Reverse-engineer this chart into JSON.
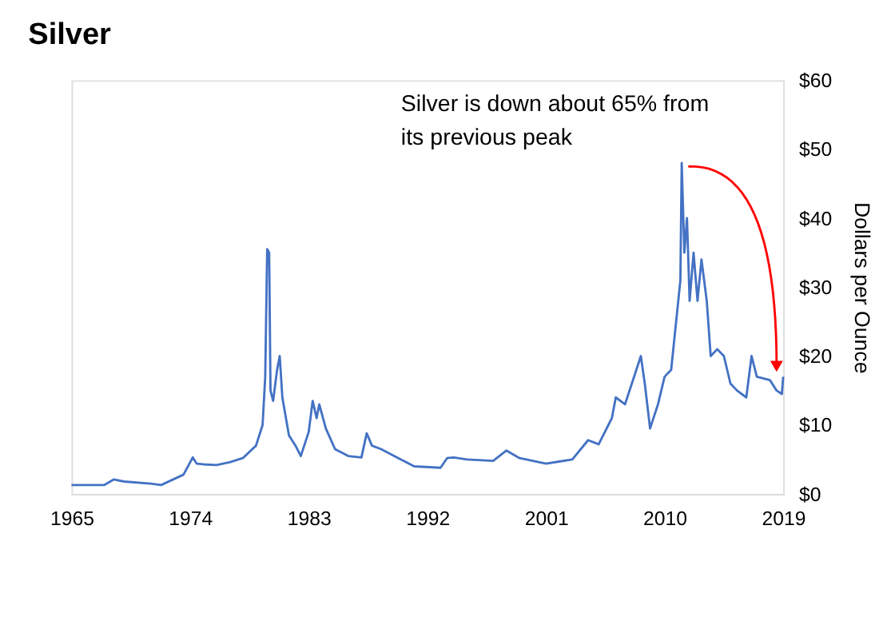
{
  "chart_data": {
    "type": "line",
    "title": "Silver",
    "ylabel": "Dollars per Ounce",
    "x": [
      1965,
      1967.5,
      1968.2,
      1969,
      1971,
      1971.8,
      1973.5,
      1974.2,
      1974.5,
      1975,
      1976,
      1977,
      1978,
      1979,
      1979.5,
      1979.7,
      1979.85,
      1980.0,
      1980.1,
      1980.3,
      1980.6,
      1980.8,
      1981,
      1981.5,
      1982,
      1982.4,
      1983,
      1983.3,
      1983.6,
      1983.8,
      1984.3,
      1985,
      1986,
      1987,
      1987.4,
      1987.8,
      1988.5,
      1990,
      1991,
      1993,
      1993.5,
      1994,
      1995,
      1997,
      1998,
      1999,
      2001,
      2002,
      2003,
      2004.2,
      2005,
      2006,
      2006.3,
      2007,
      2008.2,
      2008.5,
      2008.9,
      2009.5,
      2010,
      2010.5,
      2011.2,
      2011.3,
      2011.5,
      2011.7,
      2011.9,
      2012.2,
      2012.5,
      2012.8,
      2013.2,
      2013.5,
      2014,
      2014.5,
      2015,
      2015.5,
      2016.2,
      2016.6,
      2017,
      2018,
      2018.5,
      2018.9,
      2019
    ],
    "series": [
      {
        "color": "#4472c4",
        "values": [
          1.3,
          1.3,
          2.1,
          1.8,
          1.5,
          1.3,
          2.8,
          5.3,
          4.4,
          4.3,
          4.2,
          4.6,
          5.2,
          7,
          10,
          17,
          35.5,
          35,
          15,
          13.5,
          18,
          20,
          14,
          8.5,
          7,
          5.5,
          9,
          13.5,
          11,
          13,
          9.5,
          6.5,
          5.5,
          5.3,
          8.8,
          7,
          6.5,
          5,
          4,
          3.8,
          5.2,
          5.3,
          5,
          4.8,
          6.3,
          5.2,
          4.4,
          4.7,
          5,
          7.8,
          7.2,
          11,
          14,
          13,
          20,
          16,
          9.5,
          13,
          17,
          18,
          31,
          48,
          35,
          40,
          28,
          35,
          28,
          34,
          28,
          20,
          21,
          20,
          16,
          15,
          14,
          20,
          17,
          16.5,
          15,
          14.5,
          17
        ]
      }
    ],
    "xlim": [
      1965,
      2019
    ],
    "xticks": [
      1965,
      1974,
      1983,
      1992,
      2001,
      2010,
      2019
    ],
    "ylim": [
      0,
      60
    ],
    "yticks": [
      {
        "value": 0,
        "label": "$0"
      },
      {
        "value": 10,
        "label": "$10"
      },
      {
        "value": 20,
        "label": "$20"
      },
      {
        "value": 30,
        "label": "$30"
      },
      {
        "value": 40,
        "label": "$40"
      },
      {
        "value": 50,
        "label": "$50"
      },
      {
        "value": 60,
        "label": "$60"
      }
    ],
    "grid": false,
    "legend": false,
    "line_style": "solid",
    "marker": "none",
    "annotations": [
      {
        "text": "Silver is down about 65% from\nits previous peak",
        "x": 2011.3,
        "y": 48
      }
    ]
  }
}
